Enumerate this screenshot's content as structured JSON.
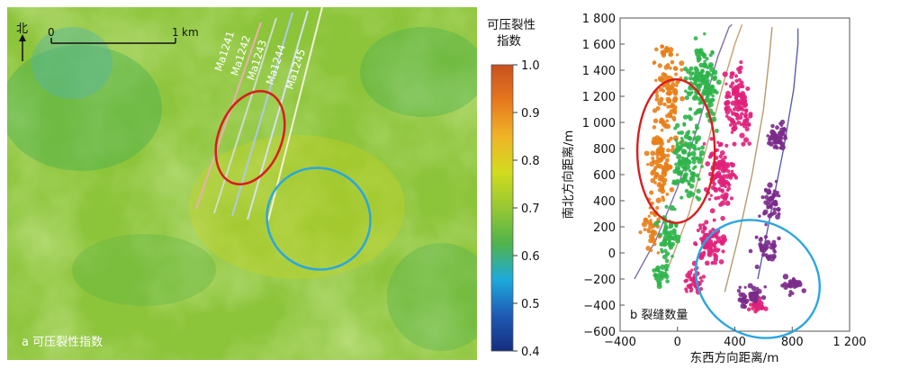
{
  "chart_data": [
    {
      "type": "heatmap",
      "panel_label": "a 可压裂性指数",
      "north_label": "北",
      "scale_bar": {
        "start": "0",
        "end": "1",
        "unit": "km"
      },
      "wells": [
        "Ma1241",
        "Ma1242",
        "Ma1243",
        "Ma1244",
        "Ma1245"
      ],
      "colorbar": {
        "title_line1": "可压裂性",
        "title_line2": "指数",
        "range": [
          0.4,
          1.0
        ],
        "ticks": [
          "1.0",
          "0.9",
          "0.8",
          "0.7",
          "0.6",
          "0.5",
          "0.4"
        ],
        "colors": [
          "#c8501e",
          "#e6781e",
          "#f0b428",
          "#d2dc1e",
          "#96c832",
          "#50b44b",
          "#1eaadc",
          "#1e5ab4",
          "#162e80"
        ]
      },
      "map_colors": {
        "high": "#c8d01e",
        "mid": "#86c33a",
        "low": "#4caf4f",
        "cold": "#55b5a5"
      }
    },
    {
      "type": "scatter",
      "panel_label": "b 裂缝数量",
      "xlabel": "东西方向距离/m",
      "ylabel": "南北方向距离/m",
      "xlim": [
        -400,
        1200
      ],
      "ylim": [
        -600,
        1800
      ],
      "x_ticks": [
        "−400",
        "0",
        "400",
        "800",
        "1 200"
      ],
      "y_ticks": [
        "1 800",
        "1 600",
        "1 400",
        "1 200",
        "1 000",
        "800",
        "600",
        "400",
        "200",
        "0",
        "−200",
        "−400",
        "−600"
      ],
      "series": [
        {
          "color": "#e8801a",
          "clusters": [
            [
              -60,
              1200,
              90,
              380,
              110
            ],
            [
              -120,
              700,
              70,
              260,
              90
            ],
            [
              -180,
              200,
              60,
              180,
              35
            ]
          ]
        },
        {
          "color": "#2fb44a",
          "clusters": [
            [
              160,
              1300,
              110,
              300,
              150
            ],
            [
              60,
              700,
              100,
              280,
              130
            ],
            [
              -60,
              150,
              70,
              160,
              55
            ],
            [
              -120,
              -150,
              50,
              90,
              30
            ]
          ]
        },
        {
          "color": "#e0207a",
          "clusters": [
            [
              420,
              1150,
              90,
              250,
              120
            ],
            [
              300,
              600,
              90,
              250,
              110
            ],
            [
              220,
              80,
              90,
              170,
              80
            ],
            [
              120,
              -220,
              70,
              80,
              35
            ],
            [
              560,
              -400,
              60,
              50,
              25
            ]
          ]
        },
        {
          "color": "#7a2a8a",
          "clusters": [
            [
              700,
              900,
              70,
              120,
              45
            ],
            [
              650,
              400,
              70,
              150,
              45
            ],
            [
              620,
              0,
              80,
              120,
              35
            ],
            [
              500,
              -330,
              90,
              70,
              40
            ],
            [
              800,
              -250,
              70,
              80,
              25
            ]
          ]
        }
      ],
      "wells": [
        {
          "color": "#7f6fa8",
          "path": [
            [
              -300,
              -200
            ],
            [
              -150,
              100
            ],
            [
              0,
              500
            ],
            [
              150,
              1000
            ],
            [
              280,
              1500
            ],
            [
              360,
              1730
            ],
            [
              380,
              1750
            ]
          ]
        },
        {
          "color": "#c8a070",
          "path": [
            [
              -60,
              -100
            ],
            [
              80,
              300
            ],
            [
              200,
              800
            ],
            [
              320,
              1300
            ],
            [
              400,
              1600
            ],
            [
              450,
              1750
            ]
          ]
        },
        {
          "color": "#b49a6e",
          "path": [
            [
              330,
              -300
            ],
            [
              420,
              100
            ],
            [
              520,
              600
            ],
            [
              600,
              1100
            ],
            [
              640,
              1500
            ],
            [
              660,
              1730
            ]
          ]
        },
        {
          "color": "#5c5cae",
          "path": [
            [
              560,
              -200
            ],
            [
              650,
              300
            ],
            [
              740,
              800
            ],
            [
              810,
              1250
            ],
            [
              840,
              1600
            ],
            [
              840,
              1720
            ]
          ]
        }
      ],
      "ellipses": [
        {
          "color": "#d81e1e",
          "center": [
            -10,
            780
          ],
          "radii": [
            270,
            550
          ]
        },
        {
          "color": "#2aa6e0",
          "center": [
            560,
            -200
          ],
          "radii": [
            450,
            430
          ]
        }
      ]
    }
  ]
}
